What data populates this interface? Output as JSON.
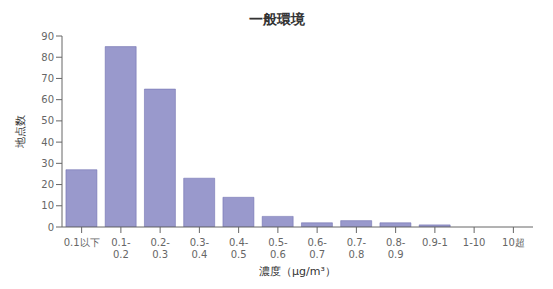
{
  "chart_data": {
    "type": "bar",
    "title": "一般環境",
    "xlabel": "濃度（μg/m³）",
    "ylabel": "地点数",
    "categories": [
      "0.1以下",
      "0.1-\n0.2",
      "0.2-\n0.3",
      "0.3-\n0.4",
      "0.4-\n0.5",
      "0.5-\n0.6",
      "0.6-\n0.7",
      "0.7-\n0.8",
      "0.8-\n0.9",
      "0.9-1",
      "1-10",
      "10超"
    ],
    "values": [
      27,
      85,
      65,
      23,
      14,
      5,
      2,
      3,
      2,
      1,
      0,
      0
    ],
    "color": "#9999cc",
    "ylim": [
      0,
      90
    ],
    "yticks": [
      0,
      10,
      20,
      30,
      40,
      50,
      60,
      70,
      80,
      90
    ],
    "grid": false
  }
}
